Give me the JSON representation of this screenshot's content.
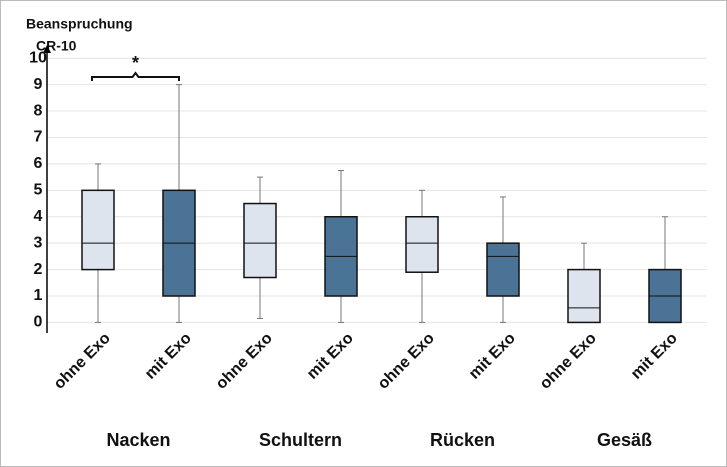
{
  "chart_data": {
    "type": "box",
    "title": "Beanspruchung",
    "y_label": "CR-10",
    "annotation": "*",
    "categories": [
      "ohne Exo",
      "mit Exo",
      "ohne Exo",
      "mit Exo",
      "ohne Exo",
      "mit Exo",
      "ohne Exo",
      "mit Exo"
    ],
    "groups": [
      "Nacken",
      "Schultern",
      "Rücken",
      "Gesäß"
    ],
    "colors": [
      "#dde4ee",
      "#4a7396"
    ],
    "boxes": [
      {
        "min": 0,
        "q1": 2,
        "median": 3,
        "q3": 5,
        "max": 6
      },
      {
        "min": 0,
        "q1": 1,
        "median": 3,
        "q3": 5,
        "max": 9
      },
      {
        "min": 0.15,
        "q1": 1.7,
        "median": 3,
        "q3": 4.5,
        "max": 5.5
      },
      {
        "min": 0,
        "q1": 1,
        "median": 2.5,
        "q3": 4,
        "max": 5.75
      },
      {
        "min": 0,
        "q1": 1.9,
        "median": 3,
        "q3": 4,
        "max": 5
      },
      {
        "min": 0,
        "q1": 1,
        "median": 2.5,
        "q3": 3,
        "max": 4.75
      },
      {
        "min": 0,
        "q1": 0,
        "median": 0.55,
        "q3": 2,
        "max": 3
      },
      {
        "min": 0,
        "q1": 0,
        "median": 1,
        "q3": 2,
        "max": 4
      }
    ],
    "ylim": [
      -0.4,
      10.5
    ],
    "yticks": [
      0,
      1,
      2,
      3,
      4,
      5,
      6,
      7,
      8,
      9,
      10
    ],
    "grid": true
  }
}
